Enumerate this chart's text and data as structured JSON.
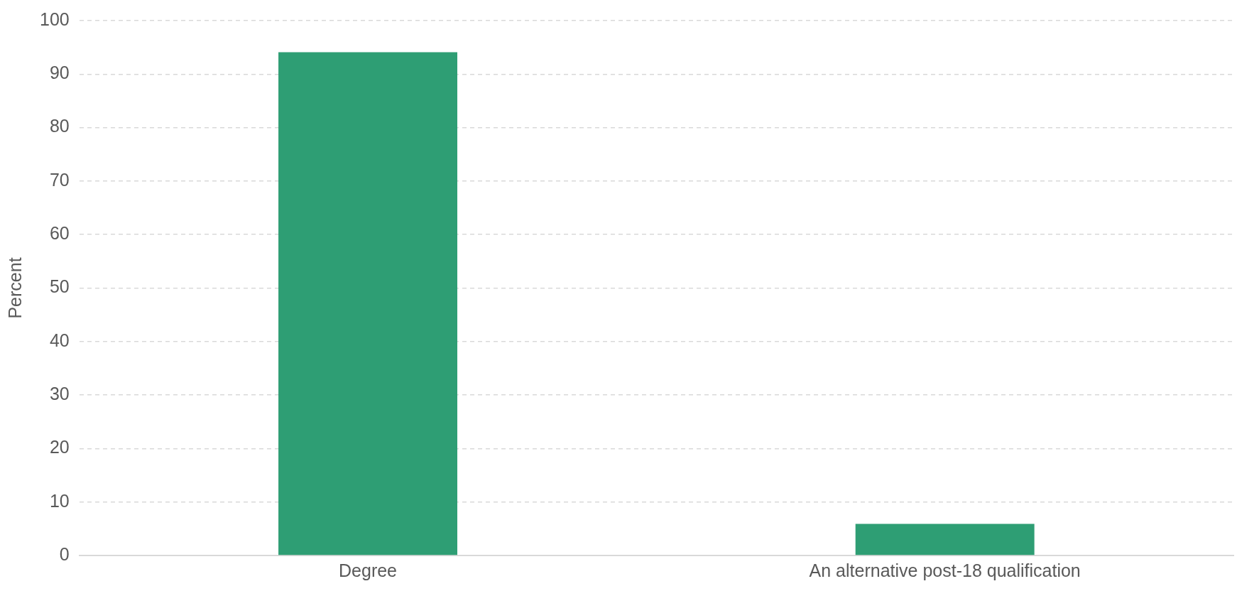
{
  "chart_data": {
    "type": "bar",
    "ylabel": "Percent",
    "categories": [
      "Degree",
      "An alternative post-18 qualification"
    ],
    "values": [
      94.1,
      5.9
    ],
    "color": "#2e9e74",
    "ylim": [
      0,
      100
    ],
    "yticks": [
      0,
      10,
      20,
      30,
      40,
      50,
      60,
      70,
      80,
      90,
      100
    ],
    "grid": "y"
  }
}
